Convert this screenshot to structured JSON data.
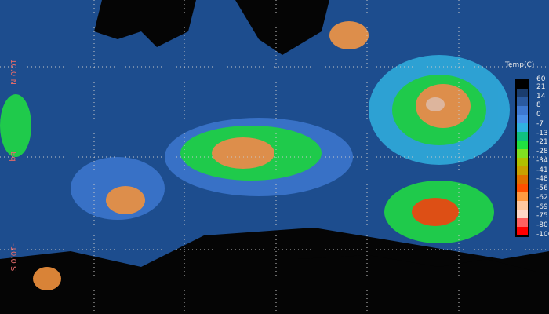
{
  "map": {
    "latitude_labels": [
      "10.0 N",
      "Eq",
      "-10.0 S"
    ],
    "ocean_color": "#1d4d8e",
    "land_color": "#050505"
  },
  "legend": {
    "title": "Temp(C)",
    "ticks": [
      "60",
      "21",
      "14",
      "8",
      "0",
      "-7",
      "-13",
      "-21",
      "-28",
      "-34",
      "-41",
      "-48",
      "-56",
      "-62",
      "-69",
      "-75",
      "-80",
      "-100"
    ],
    "colors": [
      "#000000",
      "#1a3d6e",
      "#2a5aa0",
      "#3d78d0",
      "#4a90e8",
      "#30b0e0",
      "#10c080",
      "#20e040",
      "#80e020",
      "#b0c000",
      "#c8a000",
      "#e07000",
      "#ff5000",
      "#ff9a40",
      "#ffc8a0",
      "#ffd8c8",
      "#ff6060",
      "#ff0000"
    ]
  }
}
